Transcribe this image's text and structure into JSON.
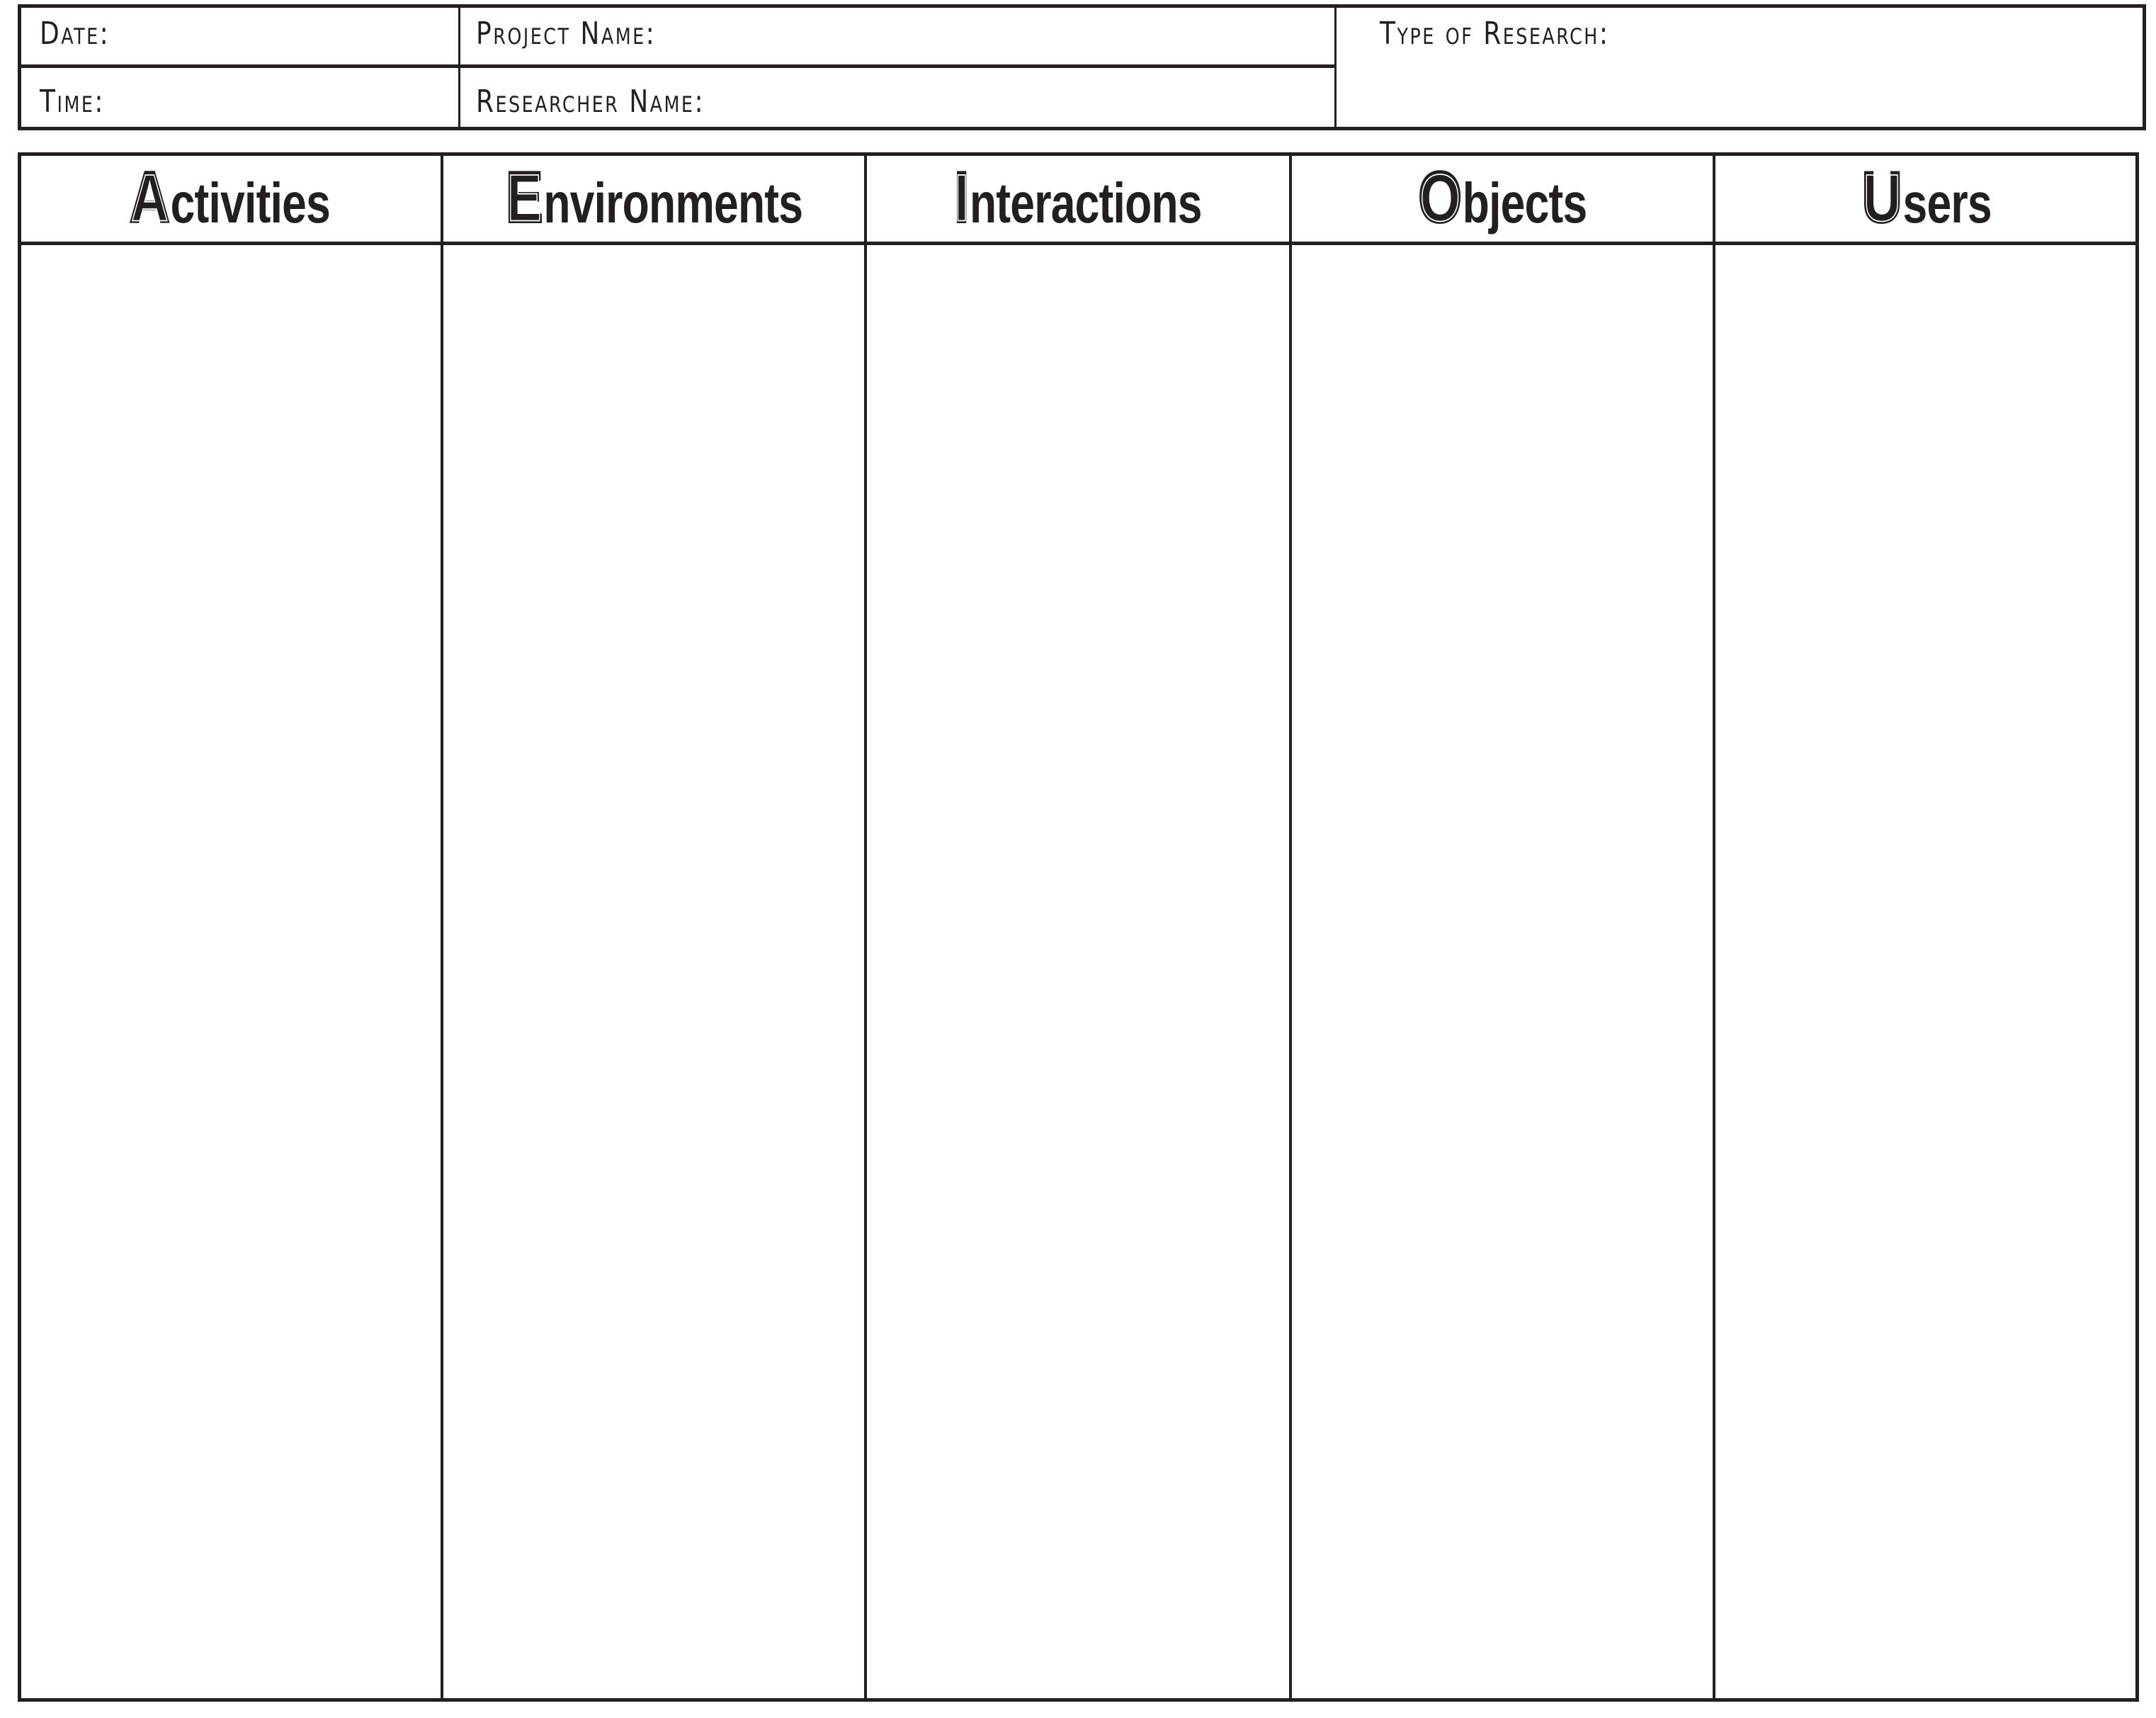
{
  "header_fields": {
    "date": "Date:",
    "time": "Time:",
    "project_name": "Project Name:",
    "researcher_name": "Researcher Name:",
    "type_of_research": "Type of Research:"
  },
  "columns": [
    {
      "initial": "A",
      "rest": "ctivities"
    },
    {
      "initial": "E",
      "rest": "nvironments"
    },
    {
      "initial": "I",
      "rest": "nteractions"
    },
    {
      "initial": "O",
      "rest": "bjects"
    },
    {
      "initial": "U",
      "rest": "sers"
    }
  ]
}
